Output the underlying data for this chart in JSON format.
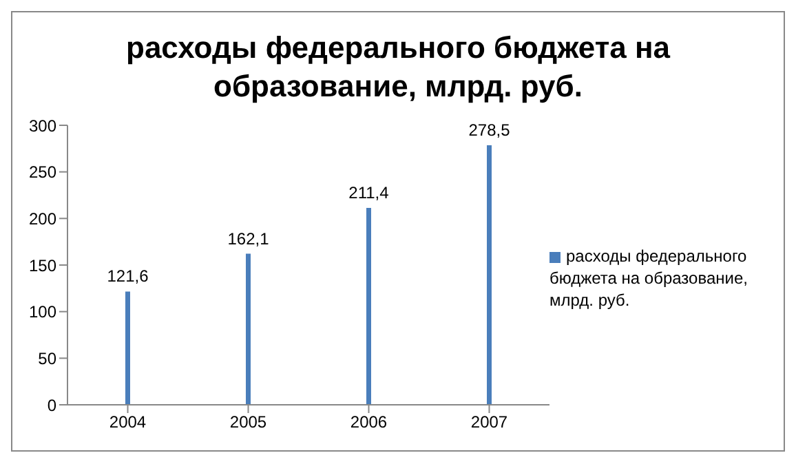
{
  "chart_data": {
    "type": "bar",
    "title": "расходы федерального бюджета на образование, млрд. руб.",
    "categories": [
      "2004",
      "2005",
      "2006",
      "2007"
    ],
    "series": [
      {
        "name": "расходы федерального бюджета на образование, млрд. руб.",
        "color": "#4a7ebb",
        "values": [
          121.6,
          162.1,
          211.4,
          278.5
        ],
        "value_labels": [
          "121,6",
          "162,1",
          "211,4",
          "278,5"
        ]
      }
    ],
    "ylim": [
      0,
      300
    ],
    "yticks": [
      0,
      50,
      100,
      150,
      200,
      250,
      300
    ],
    "grid": false,
    "legend": "right"
  }
}
